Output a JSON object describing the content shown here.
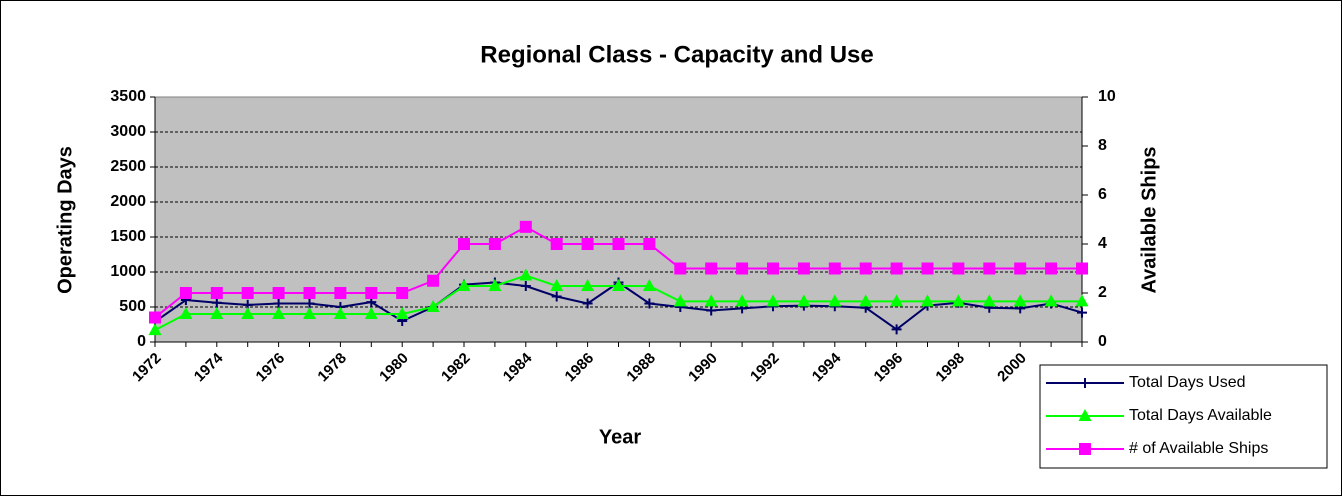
{
  "chart_data": {
    "type": "line",
    "title": "Regional Class - Capacity and Use",
    "x_label": "Year",
    "y_label": "Operating Days",
    "y2_label": "Available Ships",
    "categories": [
      "1972",
      null,
      "1974",
      null,
      "1976",
      null,
      "1978",
      null,
      "1980",
      null,
      "1982",
      null,
      "1984",
      null,
      "1986",
      null,
      "1988",
      null,
      "1990",
      null,
      "1992",
      null,
      "1994",
      null,
      "1996",
      null,
      "1998",
      null,
      "2000",
      null,
      null
    ],
    "ylim": [
      0,
      3500
    ],
    "yticks": [
      0,
      500,
      1000,
      1500,
      2000,
      2500,
      3000,
      3500
    ],
    "y2lim": [
      0,
      10
    ],
    "y2ticks": [
      0,
      2,
      4,
      6,
      8,
      10
    ],
    "grid": true,
    "legend": "bottom-right",
    "series": [
      {
        "name": "Total Days Used",
        "color": "#000066",
        "marker": "plus",
        "values": [
          290,
          600,
          560,
          530,
          550,
          550,
          500,
          570,
          300,
          500,
          820,
          850,
          800,
          650,
          550,
          850,
          550,
          500,
          450,
          480,
          510,
          520,
          510,
          490,
          180,
          520,
          560,
          490,
          480,
          550,
          420
        ]
      },
      {
        "name": "Total Days Available",
        "color": "#00ff00",
        "marker": "triangle",
        "values": [
          170,
          400,
          400,
          400,
          400,
          400,
          400,
          400,
          400,
          500,
          800,
          800,
          950,
          800,
          800,
          800,
          800,
          580,
          580,
          580,
          580,
          580,
          580,
          580,
          580,
          580,
          580,
          580,
          580,
          580,
          580
        ]
      },
      {
        "name": "# of Available Ships",
        "color": "#ff00ff",
        "marker": "square",
        "axis": "y2",
        "values": [
          1,
          2,
          2,
          2,
          2,
          2,
          2,
          2,
          2,
          2.5,
          4,
          4,
          4.7,
          4,
          4,
          4,
          4,
          3,
          3,
          3,
          3,
          3,
          3,
          3,
          3,
          3,
          3,
          3,
          3,
          3,
          3
        ]
      }
    ]
  }
}
